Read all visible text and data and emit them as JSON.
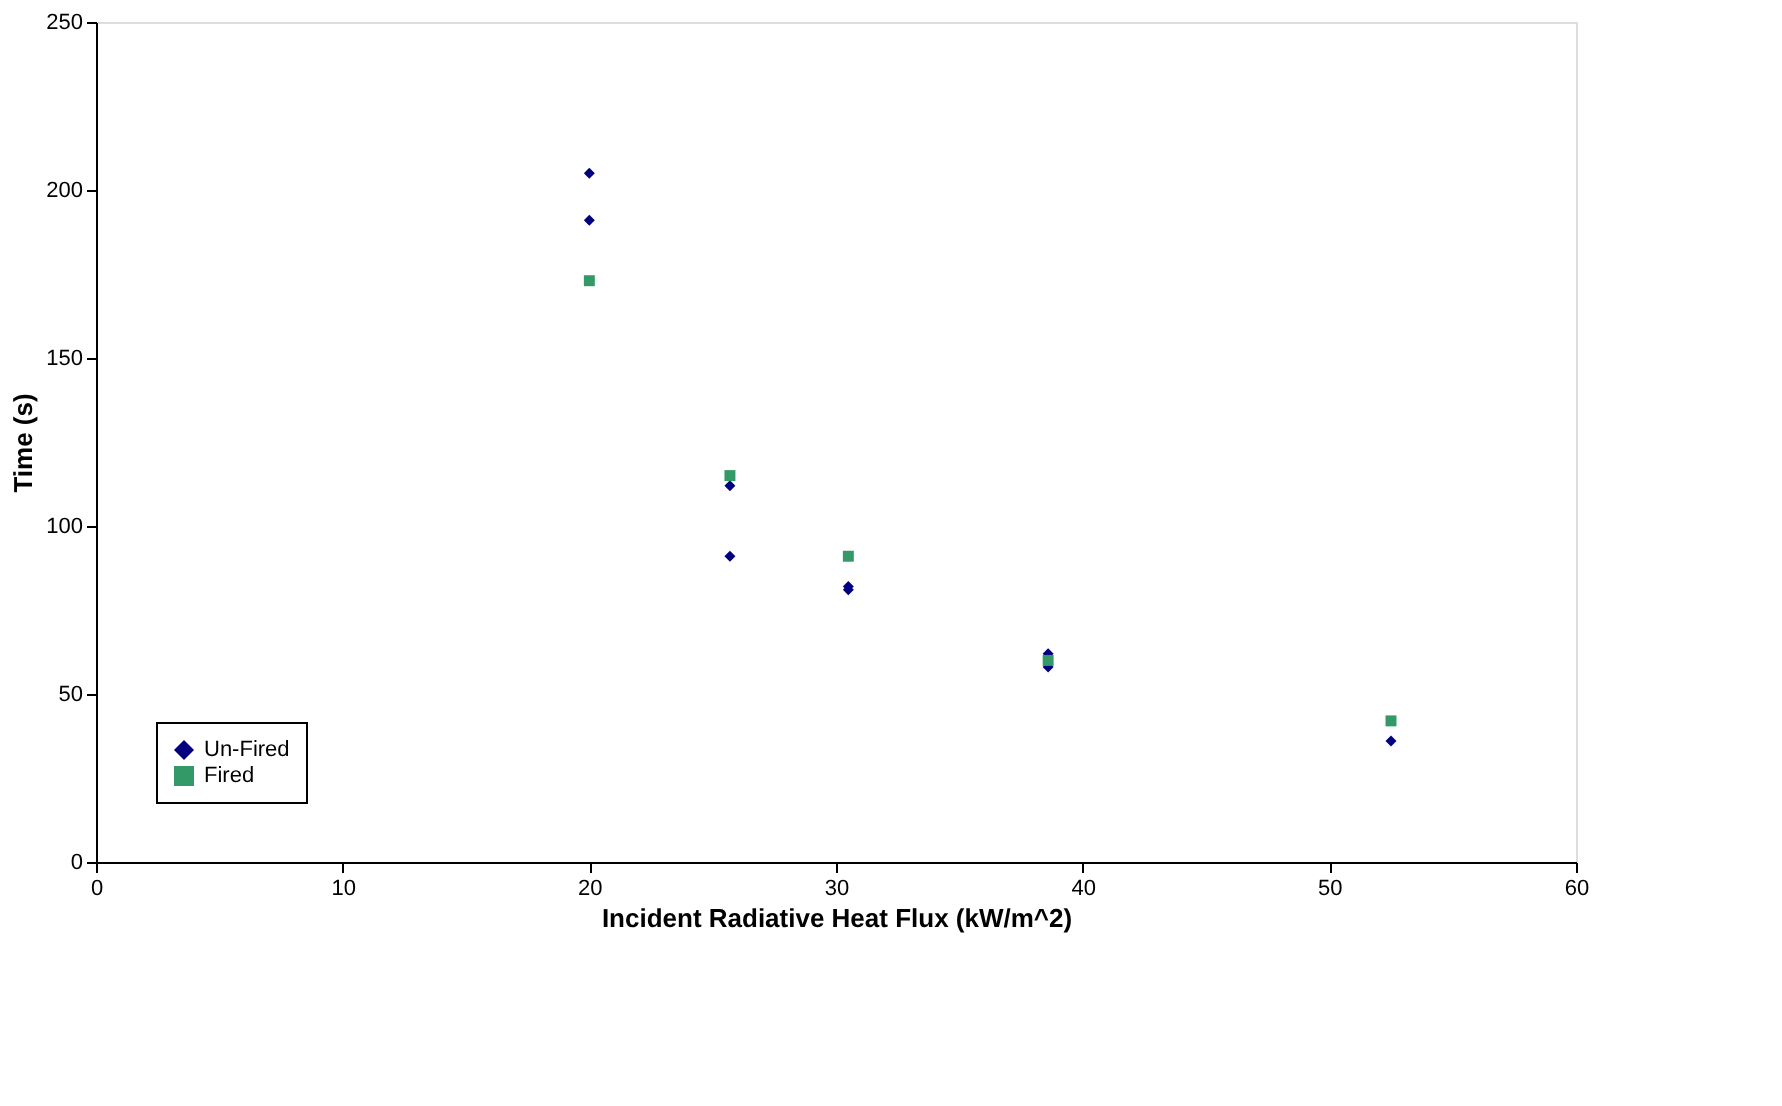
{
  "chart_data": {
    "type": "scatter",
    "xlabel": "Incident Radiative Heat Flux (kW/m^2)",
    "ylabel": "Time (s)",
    "xlim": [
      0,
      60
    ],
    "xticks": [
      0,
      10,
      20,
      30,
      40,
      50,
      60
    ],
    "ylim": [
      0,
      250
    ],
    "yticks": [
      0,
      50,
      100,
      150,
      200,
      250
    ],
    "grid": false,
    "legend": "bottom left",
    "series": [
      {
        "name": "Un-Fired",
        "color": "#000080",
        "marker": "diamond",
        "x": [
          20,
          20,
          25.7,
          25.7,
          30.5,
          30.5,
          38.6,
          38.6,
          52.5
        ],
        "values": [
          205,
          191,
          112,
          91,
          82,
          81,
          62,
          58,
          36
        ]
      },
      {
        "name": "Fired",
        "color": "#339966",
        "marker": "square",
        "x": [
          20,
          25.7,
          30.5,
          38.6,
          52.5
        ],
        "values": [
          173,
          115,
          91,
          60,
          42
        ]
      }
    ]
  }
}
